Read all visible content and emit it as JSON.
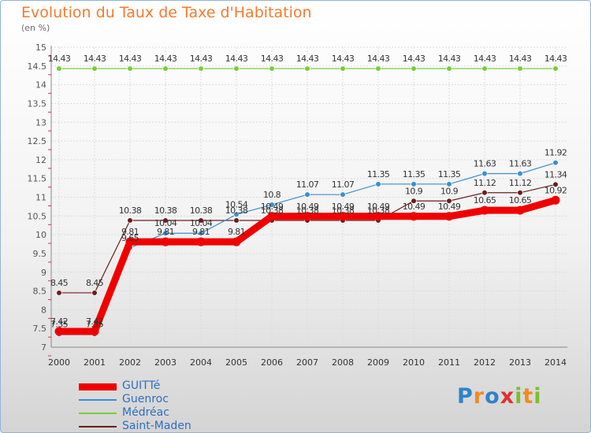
{
  "chart_data": {
    "type": "line",
    "title": "Evolution du Taux de Taxe d'Habitation",
    "unit_label": "(en %)",
    "xlabel": "",
    "ylabel": "",
    "ylim": [
      7,
      15
    ],
    "yticks": [
      7,
      7.5,
      8,
      8.5,
      9,
      9.5,
      10,
      10.5,
      11,
      11.5,
      12,
      12.5,
      13,
      13.5,
      14,
      14.5,
      15
    ],
    "categories": [
      "2000",
      "2001",
      "2002",
      "2003",
      "2004",
      "2005",
      "2006",
      "2007",
      "2008",
      "2009",
      "2010",
      "2011",
      "2012",
      "2013",
      "2014"
    ],
    "series": [
      {
        "name": "Saint-Maden",
        "color": "#6b1d1d",
        "highlight": false,
        "values": [
          8.45,
          8.45,
          10.38,
          10.38,
          10.38,
          10.38,
          10.38,
          10.38,
          10.38,
          10.38,
          10.9,
          10.9,
          11.12,
          11.12,
          11.34
        ],
        "labels": [
          "8.45",
          "8.45",
          "10.38",
          "10.38",
          "10.38",
          "10.38",
          "10.38",
          "10.38",
          "10.38",
          "10.38",
          "10.9",
          "10.9",
          "11.12",
          "11.12",
          "11.34"
        ]
      },
      {
        "name": "Guenroc",
        "color": "#3a8fd0",
        "highlight": false,
        "values": [
          7.35,
          7.35,
          9.65,
          10.04,
          10.04,
          10.54,
          10.8,
          11.07,
          11.07,
          11.35,
          11.35,
          11.35,
          11.63,
          11.63,
          11.92
        ],
        "labels": [
          "7.35",
          "7.35",
          "9.65",
          "10.04",
          "10.04",
          "10.54",
          "10.8",
          "11.07",
          "11.07",
          "11.35",
          "11.35",
          "11.35",
          "11.63",
          "11.63",
          "11.92"
        ]
      },
      {
        "name": "Médréac",
        "color": "#7acc3e",
        "highlight": false,
        "values": [
          14.43,
          14.43,
          14.43,
          14.43,
          14.43,
          14.43,
          14.43,
          14.43,
          14.43,
          14.43,
          14.43,
          14.43,
          14.43,
          14.43,
          14.43
        ],
        "labels": [
          "14.43",
          "14.43",
          "14.43",
          "14.43",
          "14.43",
          "14.43",
          "14.43",
          "14.43",
          "14.43",
          "14.43",
          "14.43",
          "14.43",
          "14.43",
          "14.43",
          "14.43"
        ]
      },
      {
        "name": "GUITTé",
        "color": "#f00000",
        "highlight": true,
        "values": [
          7.42,
          7.42,
          9.81,
          9.81,
          9.81,
          9.81,
          10.49,
          10.49,
          10.49,
          10.49,
          10.49,
          10.49,
          10.65,
          10.65,
          10.92
        ],
        "labels": [
          "7.42",
          "7.42",
          "9.81",
          "9.81",
          "9.81",
          "9.81",
          "10.49",
          "10.49",
          "10.49",
          "10.49",
          "10.49",
          "10.49",
          "10.65",
          "10.65",
          "10.92"
        ]
      }
    ],
    "legend_order": [
      "GUITTé",
      "Guenroc",
      "Médréac",
      "Saint-Maden"
    ]
  },
  "logo": {
    "text": "Proxiti",
    "letters": [
      {
        "ch": "P",
        "color": "#2f82c8"
      },
      {
        "ch": "r",
        "color": "#f08c1e"
      },
      {
        "ch": "o",
        "color": "#2f82c8"
      },
      {
        "ch": "x",
        "color": "#e03030"
      },
      {
        "ch": "i",
        "color": "#7abf2e"
      },
      {
        "ch": "t",
        "color": "#f08c1e"
      },
      {
        "ch": "i",
        "color": "#7abf2e"
      }
    ]
  }
}
